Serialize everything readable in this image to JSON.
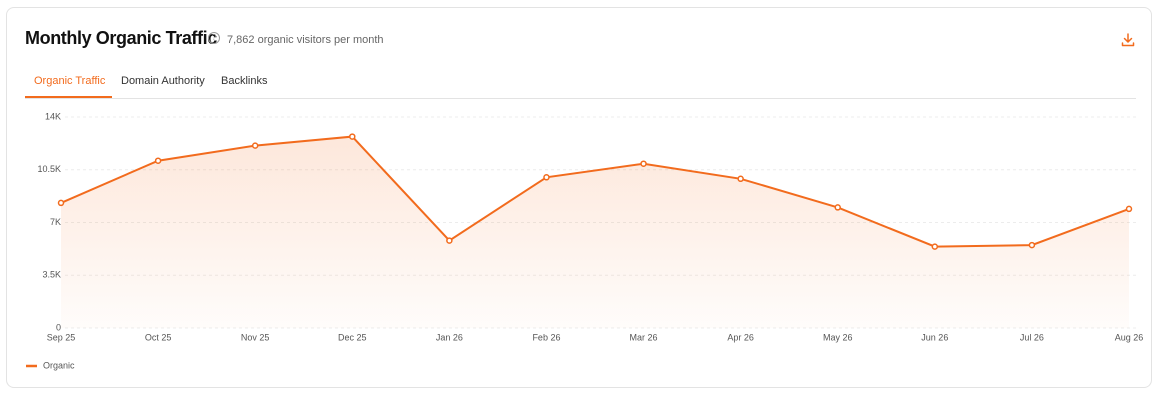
{
  "header": {
    "title": "Monthly Organic Traffic",
    "subtitle": "7,862 organic visitors per month"
  },
  "tabs": [
    "Organic Traffic",
    "Domain Authority",
    "Backlinks"
  ],
  "chart_data": {
    "type": "area",
    "categories": [
      "Sep 25",
      "Oct 25",
      "Nov 25",
      "Dec 25",
      "Jan 26",
      "Feb 26",
      "Mar 26",
      "Apr 26",
      "May 26",
      "Jun 26",
      "Jul 26",
      "Aug 26"
    ],
    "series": [
      {
        "name": "Organic",
        "color": "#f26b1d",
        "values": [
          8300,
          11100,
          12100,
          12700,
          5800,
          10000,
          10900,
          9900,
          8000,
          5400,
          5500,
          7900
        ]
      }
    ],
    "ylim": [
      0,
      14000
    ],
    "yticks": [
      0,
      {
        "value": 3500,
        "label": "3.5K"
      },
      {
        "value": 7000,
        "label": "7K"
      },
      {
        "value": 10500,
        "label": "10.5K"
      },
      {
        "value": 14000,
        "label": "14K"
      }
    ],
    "grid": true,
    "legend": "bottom-left"
  }
}
